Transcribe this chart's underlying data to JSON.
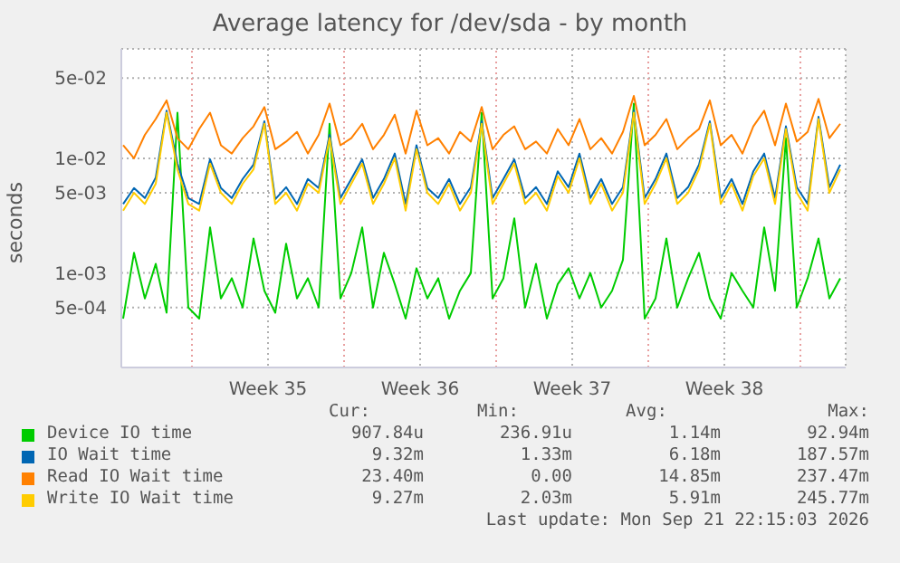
{
  "chart_data": {
    "type": "line",
    "title": "Average latency for /dev/sda - by month",
    "ylabel": "seconds",
    "log": true,
    "grid": true,
    "legend": "bottom",
    "marker": "none",
    "line_style": "solid",
    "ylim": [
      0.00015,
      0.09
    ],
    "yticks": [
      {
        "value": 0.05,
        "label": "5e-02"
      },
      {
        "value": 0.01,
        "label": "1e-02"
      },
      {
        "value": 0.005,
        "label": "5e-03"
      },
      {
        "value": 0.001,
        "label": "1e-03"
      },
      {
        "value": 0.0005,
        "label": "5e-04"
      }
    ],
    "xlim": [
      "2026-08-19T14:00",
      "2026-09-21T22:00"
    ],
    "xticks": [
      {
        "value": "2026-08-26T08:00",
        "label": "Week 35"
      },
      {
        "value": "2026-09-02T08:00",
        "label": "Week 36"
      },
      {
        "value": "2026-09-09T08:00",
        "label": "Week 37"
      },
      {
        "value": "2026-09-16T08:00",
        "label": "Week 38"
      }
    ],
    "ref_lines": [
      {
        "axis": "x",
        "value": "2026-08-22T20:00",
        "color": "#e8a0a0",
        "line_style": "dotted"
      },
      {
        "axis": "x",
        "value": "2026-08-29T20:00",
        "color": "#e8a0a0",
        "line_style": "dotted"
      },
      {
        "axis": "x",
        "value": "2026-09-05T20:00",
        "color": "#e8a0a0",
        "line_style": "dotted"
      },
      {
        "axis": "x",
        "value": "2026-09-12T20:00",
        "color": "#e8a0a0",
        "line_style": "dotted"
      },
      {
        "axis": "x",
        "value": "2026-09-19T20:00",
        "color": "#e8a0a0",
        "line_style": "dotted"
      }
    ],
    "x": [
      "2026-08-19T16:00",
      "2026-08-20T04:00",
      "2026-08-20T16:00",
      "2026-08-21T04:00",
      "2026-08-21T16:00",
      "2026-08-22T04:00",
      "2026-08-22T16:00",
      "2026-08-23T04:00",
      "2026-08-23T16:00",
      "2026-08-24T04:00",
      "2026-08-24T16:00",
      "2026-08-25T04:00",
      "2026-08-25T16:00",
      "2026-08-26T04:00",
      "2026-08-26T16:00",
      "2026-08-27T04:00",
      "2026-08-27T16:00",
      "2026-08-28T04:00",
      "2026-08-28T16:00",
      "2026-08-29T04:00",
      "2026-08-29T16:00",
      "2026-08-30T04:00",
      "2026-08-30T16:00",
      "2026-08-31T04:00",
      "2026-08-31T16:00",
      "2026-09-01T04:00",
      "2026-09-01T16:00",
      "2026-09-02T04:00",
      "2026-09-02T16:00",
      "2026-09-03T04:00",
      "2026-09-03T16:00",
      "2026-09-04T04:00",
      "2026-09-04T16:00",
      "2026-09-05T04:00",
      "2026-09-05T16:00",
      "2026-09-06T04:00",
      "2026-09-06T16:00",
      "2026-09-07T04:00",
      "2026-09-07T16:00",
      "2026-09-08T04:00",
      "2026-09-08T16:00",
      "2026-09-09T04:00",
      "2026-09-09T16:00",
      "2026-09-10T04:00",
      "2026-09-10T16:00",
      "2026-09-11T04:00",
      "2026-09-11T16:00",
      "2026-09-12T04:00",
      "2026-09-12T16:00",
      "2026-09-13T04:00",
      "2026-09-13T16:00",
      "2026-09-14T04:00",
      "2026-09-14T16:00",
      "2026-09-15T04:00",
      "2026-09-15T16:00",
      "2026-09-16T04:00",
      "2026-09-16T16:00",
      "2026-09-17T04:00",
      "2026-09-17T16:00",
      "2026-09-18T04:00",
      "2026-09-18T16:00",
      "2026-09-19T04:00",
      "2026-09-19T16:00",
      "2026-09-20T04:00",
      "2026-09-20T16:00",
      "2026-09-21T04:00",
      "2026-09-21T16:00"
    ],
    "series": [
      {
        "name": "Device IO time",
        "color": "#00cc00",
        "values": [
          0.0004,
          0.0015,
          0.0006,
          0.0012,
          0.00045,
          0.025,
          0.0005,
          0.0004,
          0.0025,
          0.0006,
          0.0009,
          0.0005,
          0.002,
          0.0007,
          0.00045,
          0.0018,
          0.0006,
          0.0009,
          0.0005,
          0.02,
          0.0006,
          0.001,
          0.0025,
          0.0005,
          0.0015,
          0.0008,
          0.0004,
          0.0011,
          0.0006,
          0.0009,
          0.0004,
          0.0007,
          0.001,
          0.025,
          0.0006,
          0.0009,
          0.003,
          0.0005,
          0.0012,
          0.0004,
          0.0008,
          0.0011,
          0.0006,
          0.001,
          0.0005,
          0.0007,
          0.0013,
          0.03,
          0.0004,
          0.0006,
          0.002,
          0.0005,
          0.0009,
          0.0015,
          0.0006,
          0.0004,
          0.001,
          0.0007,
          0.0005,
          0.0025,
          0.0007,
          0.015,
          0.0005,
          0.0009,
          0.002,
          0.0006,
          0.0009
        ]
      },
      {
        "name": "IO Wait time",
        "color": "#0066b3",
        "values": [
          0.004,
          0.0055,
          0.0045,
          0.0068,
          0.026,
          0.009,
          0.0045,
          0.004,
          0.0098,
          0.0055,
          0.0045,
          0.0066,
          0.0088,
          0.021,
          0.0044,
          0.0056,
          0.004,
          0.0066,
          0.0055,
          0.016,
          0.0045,
          0.0066,
          0.0098,
          0.0045,
          0.0066,
          0.011,
          0.004,
          0.013,
          0.0055,
          0.0045,
          0.0066,
          0.004,
          0.0056,
          0.021,
          0.0045,
          0.0066,
          0.0098,
          0.0045,
          0.0056,
          0.004,
          0.0077,
          0.0056,
          0.011,
          0.0045,
          0.0066,
          0.004,
          0.0056,
          0.026,
          0.0045,
          0.0066,
          0.011,
          0.0045,
          0.0056,
          0.0088,
          0.021,
          0.0045,
          0.0066,
          0.004,
          0.0077,
          0.011,
          0.0045,
          0.019,
          0.0056,
          0.004,
          0.023,
          0.0056,
          0.0088
        ]
      },
      {
        "name": "Read IO Wait time",
        "color": "#ff8000",
        "values": [
          0.013,
          0.01,
          0.016,
          0.022,
          0.032,
          0.015,
          0.012,
          0.018,
          0.025,
          0.013,
          0.011,
          0.015,
          0.019,
          0.028,
          0.012,
          0.014,
          0.017,
          0.011,
          0.016,
          0.03,
          0.013,
          0.015,
          0.02,
          0.012,
          0.016,
          0.024,
          0.011,
          0.026,
          0.013,
          0.015,
          0.011,
          0.017,
          0.014,
          0.028,
          0.012,
          0.016,
          0.019,
          0.012,
          0.014,
          0.011,
          0.018,
          0.013,
          0.022,
          0.012,
          0.015,
          0.011,
          0.017,
          0.035,
          0.013,
          0.016,
          0.022,
          0.012,
          0.015,
          0.018,
          0.032,
          0.013,
          0.016,
          0.011,
          0.019,
          0.026,
          0.013,
          0.03,
          0.014,
          0.017,
          0.033,
          0.015,
          0.02
        ]
      },
      {
        "name": "Write IO Wait time",
        "color": "#ffcc00",
        "values": [
          0.0035,
          0.005,
          0.004,
          0.006,
          0.025,
          0.008,
          0.004,
          0.0035,
          0.009,
          0.005,
          0.004,
          0.006,
          0.008,
          0.02,
          0.004,
          0.005,
          0.0035,
          0.006,
          0.005,
          0.015,
          0.004,
          0.006,
          0.009,
          0.004,
          0.006,
          0.01,
          0.0035,
          0.012,
          0.005,
          0.004,
          0.006,
          0.0035,
          0.005,
          0.02,
          0.004,
          0.006,
          0.009,
          0.004,
          0.005,
          0.0035,
          0.007,
          0.005,
          0.01,
          0.004,
          0.006,
          0.0035,
          0.005,
          0.025,
          0.004,
          0.006,
          0.01,
          0.004,
          0.005,
          0.008,
          0.02,
          0.004,
          0.006,
          0.0035,
          0.007,
          0.01,
          0.004,
          0.018,
          0.005,
          0.0035,
          0.022,
          0.005,
          0.008
        ]
      }
    ],
    "annotations": [
      "Cur:",
      "Min:",
      "Avg:",
      "Max:",
      "907.84u",
      "236.91u",
      "1.14m",
      "92.94m",
      "9.32m",
      "1.33m",
      "6.18m",
      "187.57m",
      "23.40m",
      "0.00",
      "14.85m",
      "237.47m",
      "9.27m",
      "2.03m",
      "5.91m",
      "245.77m",
      "Last update: Mon Sep 21 22:15:03 2026"
    ]
  }
}
